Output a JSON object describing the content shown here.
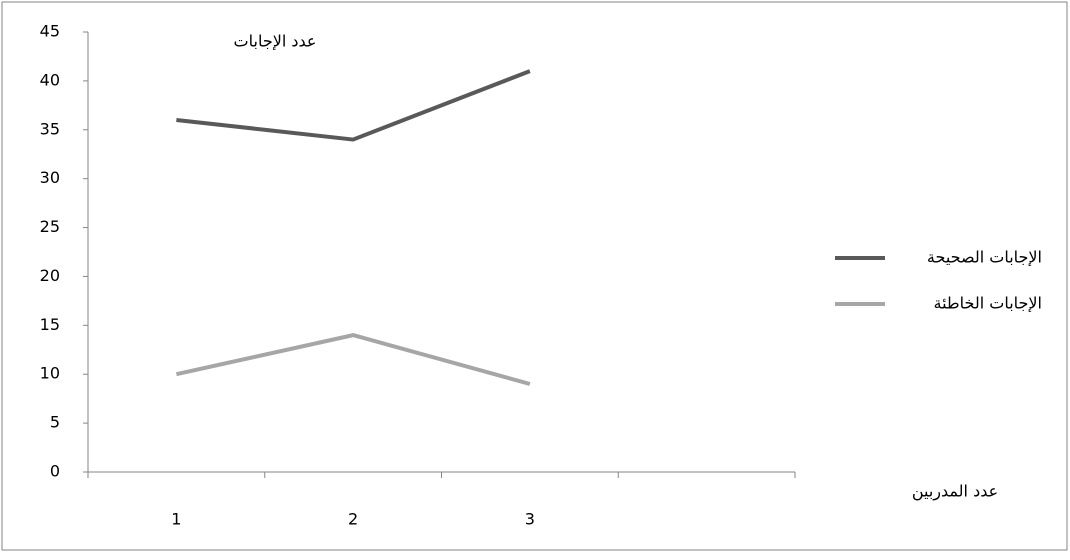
{
  "chart_data": {
    "type": "line",
    "y_label": "عدد الإجابات",
    "x_label": "عدد المدربين",
    "categories": [
      "1",
      "2",
      "3",
      null
    ],
    "series": [
      {
        "name": "الإجابات الصحيحة",
        "color": "#595959",
        "values": [
          36,
          34,
          41,
          null
        ]
      },
      {
        "name": "الإجابات الخاطئة",
        "color": "#a6a6a6",
        "values": [
          10,
          14,
          9,
          null
        ]
      }
    ],
    "ylim": [
      0,
      45
    ],
    "yticks": [
      0,
      5,
      10,
      15,
      20,
      25,
      30,
      35,
      40,
      45
    ],
    "grid": false,
    "legend": "right"
  }
}
